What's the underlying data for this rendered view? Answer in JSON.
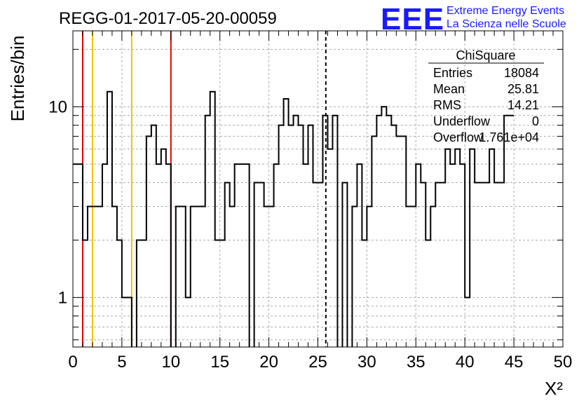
{
  "header": {
    "run_title": "REGG-01-2017-05-20-00059",
    "logo_text": "EEE",
    "logo_line1": "Extreme Energy Events",
    "logo_line2": "La Scienza nelle Scuole"
  },
  "colors": {
    "logo_blue": "#1a1aff",
    "red_line": "#e00000",
    "yellow_line": "#f5c000",
    "histogram": "#000000",
    "grid": "#aaaaaa"
  },
  "stats": {
    "title": "ChiSquare",
    "rows": [
      {
        "label": "Entries",
        "value": "18084"
      },
      {
        "label": "Mean",
        "value": "25.81"
      },
      {
        "label": "RMS",
        "value": "14.21"
      },
      {
        "label": "Underflow",
        "value": "0"
      },
      {
        "label": "Overflow",
        "value": "1.761e+04"
      }
    ]
  },
  "chart_data": {
    "type": "histogram",
    "xlabel": "X²",
    "ylabel": "Entries/bin",
    "xlim": [
      0,
      50
    ],
    "ylim": [
      0.55,
      25
    ],
    "y_scale": "log",
    "grid": true,
    "bin_width": 0.5,
    "x_ticks": [
      "0",
      "5",
      "10",
      "15",
      "20",
      "25",
      "30",
      "35",
      "40",
      "45",
      "50"
    ],
    "y_ticks": [
      "1",
      "10"
    ],
    "counts": [
      5,
      5,
      2,
      3,
      3,
      3,
      5,
      12,
      3,
      2,
      1,
      1,
      0,
      2,
      2,
      7,
      8,
      5,
      6,
      5,
      0,
      3,
      3,
      1,
      3,
      3,
      3,
      9,
      12,
      2,
      2,
      4,
      3,
      5,
      5,
      5,
      0,
      4,
      4,
      3,
      3,
      5,
      8,
      11,
      8,
      9,
      8,
      5,
      8,
      4,
      4,
      9,
      6,
      9,
      0,
      4,
      0,
      3,
      5,
      2,
      3,
      7,
      9,
      10,
      9,
      8,
      7,
      7,
      3,
      3,
      5,
      4,
      2,
      3,
      4,
      4,
      6,
      5,
      6,
      5,
      1,
      6,
      4,
      4,
      4,
      6,
      4,
      4,
      9,
      9
    ],
    "vertical_lines": [
      {
        "x": 1,
        "color": "red",
        "style": "solid"
      },
      {
        "x": 2,
        "color": "yellow",
        "style": "solid"
      },
      {
        "x": 6,
        "color": "yellow",
        "style": "solid"
      },
      {
        "x": 10,
        "color": "red",
        "style": "solid"
      },
      {
        "x": 25.81,
        "color": "black",
        "style": "dashed"
      }
    ]
  }
}
